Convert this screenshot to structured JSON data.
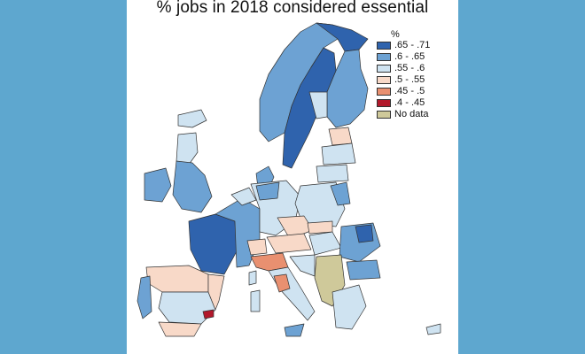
{
  "map": {
    "title": "% jobs in 2018 considered essential",
    "legend": {
      "title": "%",
      "items": [
        {
          "label": ".65 - .71",
          "color": "#2f63ad"
        },
        {
          "label": ".6 - .65",
          "color": "#6da2d3"
        },
        {
          "label": ".55 - .6",
          "color": "#cfe3f1"
        },
        {
          "label": ".5 - .55",
          "color": "#f8d9c8"
        },
        {
          "label": ".45 - .5",
          "color": "#e99070"
        },
        {
          "label": ".4 - .45",
          "color": "#b2182b"
        },
        {
          "label": "No data",
          "color": "#cfc99a"
        }
      ]
    }
  }
}
